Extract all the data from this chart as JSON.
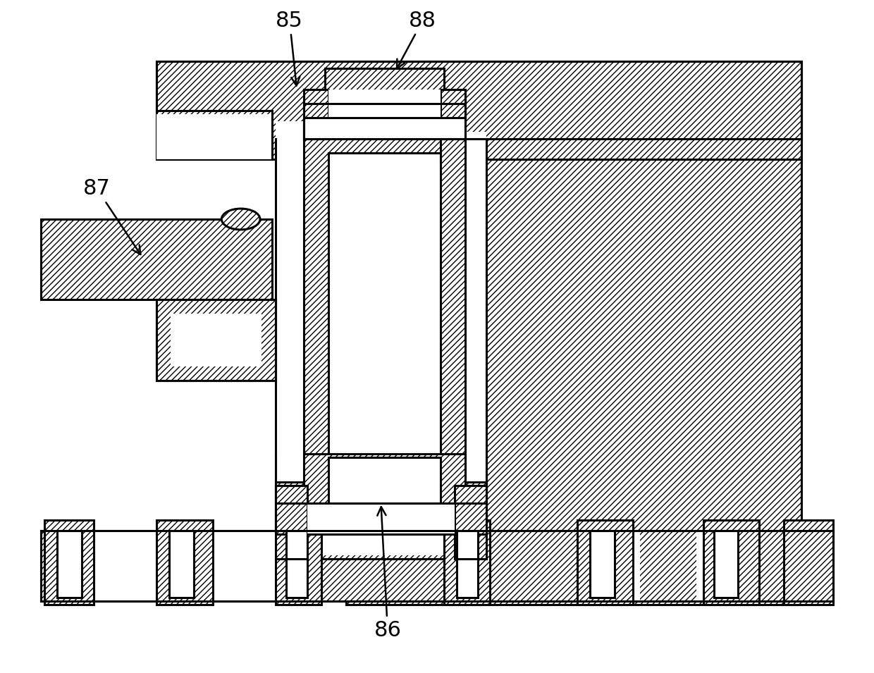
{
  "bg_color": "#ffffff",
  "line_color": "#000000",
  "lw": 2.2,
  "fig_width": 12.4,
  "fig_height": 9.55,
  "dpi": 100
}
